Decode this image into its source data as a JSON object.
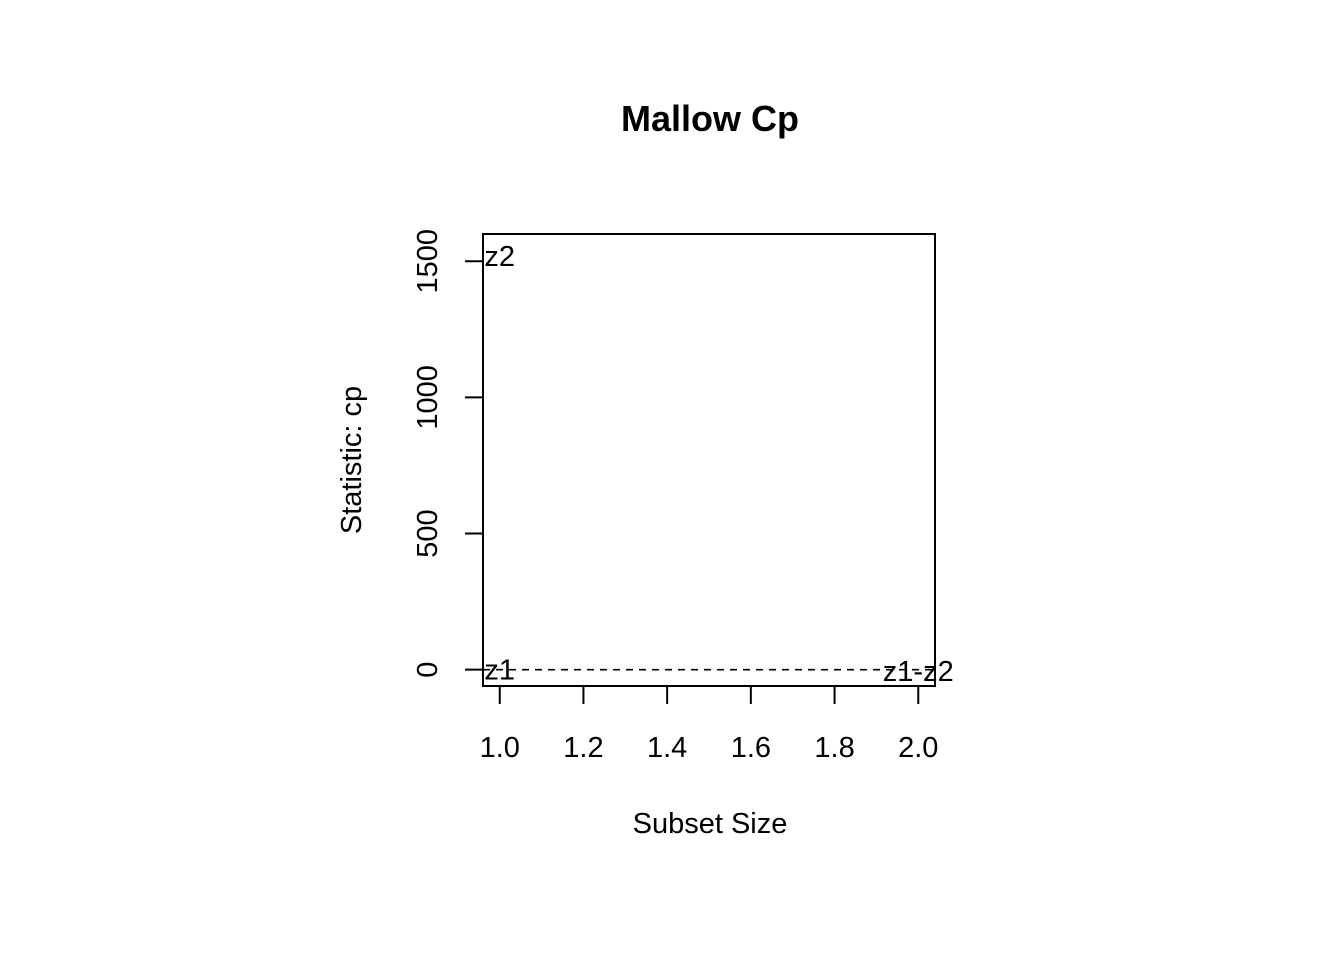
{
  "chart_data": {
    "type": "scatter",
    "title": "Mallow Cp",
    "xlabel": "Subset Size",
    "ylabel": "Statistic: cp",
    "xlim": [
      0.96,
      2.04
    ],
    "ylim": [
      -60,
      1600
    ],
    "x_ticks": [
      "1.0",
      "1.2",
      "1.4",
      "1.6",
      "1.8",
      "2.0"
    ],
    "y_ticks": [
      "0",
      "500",
      "1000",
      "1500"
    ],
    "points": [
      {
        "label": "z1",
        "x": 1,
        "y": 0
      },
      {
        "label": "z2",
        "x": 1,
        "y": 1520
      },
      {
        "label": "z1-z2",
        "x": 2,
        "y": -5
      }
    ],
    "reference_line": {
      "y": 0,
      "style": "dashed"
    },
    "grid": false,
    "legend": "none"
  }
}
